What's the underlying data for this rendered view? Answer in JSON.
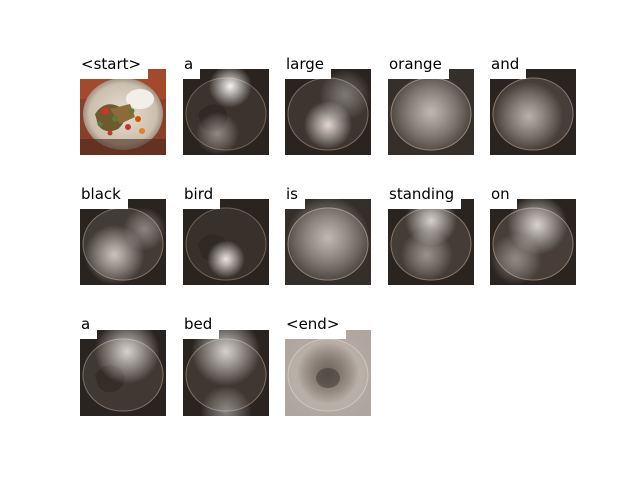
{
  "caption_steps": [
    {
      "word": "<start>",
      "kind": "original"
    },
    {
      "word": "a",
      "kind": "attention"
    },
    {
      "word": "large",
      "kind": "attention"
    },
    {
      "word": "orange",
      "kind": "attention"
    },
    {
      "word": "and",
      "kind": "attention"
    },
    {
      "word": "black",
      "kind": "attention"
    },
    {
      "word": "bird",
      "kind": "attention"
    },
    {
      "word": "is",
      "kind": "attention"
    },
    {
      "word": "standing",
      "kind": "attention"
    },
    {
      "word": "on",
      "kind": "attention"
    },
    {
      "word": "a",
      "kind": "attention"
    },
    {
      "word": "bed",
      "kind": "attention"
    },
    {
      "word": "<end>",
      "kind": "attention"
    }
  ],
  "colors": {
    "background": "#ffffff",
    "plate": "#d9d2c8",
    "food_green": "#5d7a3a",
    "food_red": "#c0392b",
    "dark_bg": "#2a2420"
  }
}
